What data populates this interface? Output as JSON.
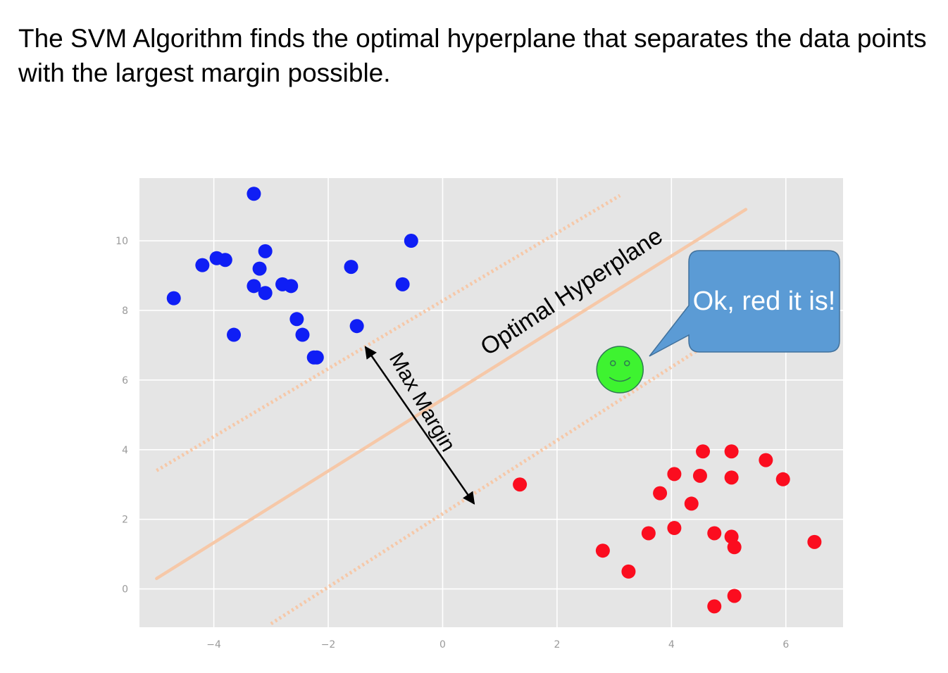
{
  "title": "The SVM Algorithm finds the optimal hyperplane that separates the data points with the largest margin possible.",
  "colors": {
    "plot_background": "#e5e5e5",
    "grid": "#ffffff",
    "class_blue": "#0f1ef5",
    "class_red": "#fb0d1f",
    "hyperplane": "#f6c8a8",
    "new_point": "#3ef330",
    "new_point_stroke": "#2e7a52",
    "bubble_fill": "#5b9bd5",
    "bubble_stroke": "#41719c",
    "bubble_text": "#ffffff"
  },
  "icons": {
    "new_point": "smiley-face-icon",
    "callout": "speech-bubble-icon"
  },
  "annotations": {
    "hyperplane_label": "Optimal Hyperplane",
    "margin_label": "Max Margin",
    "bubble_text": "Ok, red it is!"
  },
  "chart_data": {
    "type": "scatter",
    "xlim": [
      -5.3,
      7.0
    ],
    "ylim": [
      -1.1,
      11.8
    ],
    "x_ticks": [
      -4,
      -2,
      0,
      2,
      4,
      6
    ],
    "y_ticks": [
      0,
      2,
      4,
      6,
      8,
      10
    ],
    "x_tick_labels": [
      "−4",
      "−2",
      "0",
      "2",
      "4",
      "6"
    ],
    "y_tick_labels": [
      "0",
      "2",
      "4",
      "6",
      "8",
      "10"
    ],
    "grid": true,
    "series": [
      {
        "color": "blue",
        "points": [
          [
            -3.3,
            11.35
          ],
          [
            -3.95,
            9.5
          ],
          [
            -4.2,
            9.3
          ],
          [
            -3.8,
            9.45
          ],
          [
            -3.1,
            9.7
          ],
          [
            -3.2,
            9.2
          ],
          [
            -3.3,
            8.7
          ],
          [
            -3.1,
            8.5
          ],
          [
            -2.8,
            8.75
          ],
          [
            -2.65,
            8.7
          ],
          [
            -4.7,
            8.35
          ],
          [
            -2.55,
            7.75
          ],
          [
            -2.45,
            7.3
          ],
          [
            -3.65,
            7.3
          ],
          [
            -2.25,
            6.65
          ],
          [
            -2.2,
            6.65
          ],
          [
            -1.6,
            9.25
          ],
          [
            -1.5,
            7.55
          ],
          [
            -0.55,
            10.0
          ],
          [
            -0.7,
            8.75
          ]
        ]
      },
      {
        "color": "red",
        "points": [
          [
            1.35,
            3.0
          ],
          [
            4.55,
            3.95
          ],
          [
            5.05,
            3.95
          ],
          [
            5.65,
            3.7
          ],
          [
            4.05,
            3.3
          ],
          [
            4.5,
            3.25
          ],
          [
            5.05,
            3.2
          ],
          [
            5.95,
            3.15
          ],
          [
            3.8,
            2.75
          ],
          [
            4.35,
            2.45
          ],
          [
            3.6,
            1.6
          ],
          [
            4.05,
            1.75
          ],
          [
            4.75,
            1.6
          ],
          [
            5.05,
            1.5
          ],
          [
            5.1,
            1.2
          ],
          [
            2.8,
            1.1
          ],
          [
            3.25,
            0.5
          ],
          [
            6.5,
            1.35
          ],
          [
            5.1,
            -0.2
          ],
          [
            4.75,
            -0.5
          ]
        ]
      }
    ],
    "new_point": [
      3.1,
      6.3
    ],
    "hyperplane": [
      [
        -5.0,
        0.3
      ],
      [
        5.3,
        10.9
      ]
    ],
    "margin_upper": [
      [
        -5.0,
        3.4
      ],
      [
        3.1,
        11.3
      ]
    ],
    "margin_lower": [
      [
        -3.0,
        -1.0
      ],
      [
        4.5,
        6.9
      ]
    ],
    "margin_arrow": [
      [
        -1.35,
        6.95
      ],
      [
        0.55,
        2.45
      ]
    ]
  }
}
